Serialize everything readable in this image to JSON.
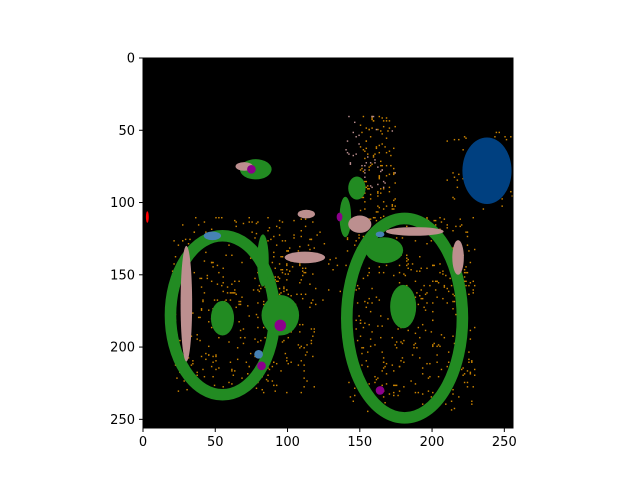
{
  "chart_data": {
    "type": "heatmap",
    "title": "",
    "xlabel": "",
    "ylabel": "",
    "image_size": [
      256,
      256
    ],
    "xlim": [
      0,
      256
    ],
    "ylim": [
      256,
      0
    ],
    "y_inverted": true,
    "grid": false,
    "legend": "none",
    "x_ticks": [
      {
        "value": 0,
        "label": "0"
      },
      {
        "value": 50,
        "label": "50"
      },
      {
        "value": 100,
        "label": "100"
      },
      {
        "value": 150,
        "label": "150"
      },
      {
        "value": 200,
        "label": "200"
      },
      {
        "value": 250,
        "label": "250"
      }
    ],
    "y_ticks": [
      {
        "value": 0,
        "label": "0"
      },
      {
        "value": 50,
        "label": "50"
      },
      {
        "value": 100,
        "label": "100"
      },
      {
        "value": 150,
        "label": "150"
      },
      {
        "value": 200,
        "label": "200"
      },
      {
        "value": 250,
        "label": "250"
      }
    ],
    "background_color": "#000000",
    "segments": [
      {
        "class": "rear-wheel",
        "color": "#228b22",
        "shape": "ring",
        "cx": 55,
        "cy": 178,
        "rx": 36,
        "ry": 55,
        "stroke": 8
      },
      {
        "class": "front-wheel",
        "color": "#228b22",
        "shape": "ring",
        "cx": 181,
        "cy": 180,
        "rx": 40,
        "ry": 69,
        "stroke": 8
      },
      {
        "class": "seat",
        "color": "#228b22",
        "shape": "ellipse",
        "cx": 78,
        "cy": 77,
        "rx": 11,
        "ry": 7
      },
      {
        "class": "handlebar-stem",
        "color": "#228b22",
        "shape": "ellipse",
        "cx": 148,
        "cy": 90,
        "rx": 6,
        "ry": 8
      },
      {
        "class": "crank",
        "color": "#228b22",
        "shape": "ellipse",
        "cx": 95,
        "cy": 178,
        "rx": 13,
        "ry": 14
      },
      {
        "class": "fork",
        "color": "#228b22",
        "shape": "ellipse",
        "cx": 180,
        "cy": 172,
        "rx": 9,
        "ry": 15
      },
      {
        "class": "fork-upper",
        "color": "#228b22",
        "shape": "ellipse",
        "cx": 167,
        "cy": 133,
        "rx": 13,
        "ry": 9
      },
      {
        "class": "rear-hub",
        "color": "#228b22",
        "shape": "ellipse",
        "cx": 55,
        "cy": 180,
        "rx": 8,
        "ry": 12
      },
      {
        "class": "head-tube",
        "color": "#228b22",
        "shape": "ellipse",
        "cx": 140,
        "cy": 110,
        "rx": 4,
        "ry": 14
      },
      {
        "class": "seat-tube",
        "color": "#228b22",
        "shape": "ellipse",
        "cx": 83,
        "cy": 140,
        "rx": 4,
        "ry": 18
      },
      {
        "class": "frame-outline",
        "color": "#bc8f8f",
        "shape": "ellipse",
        "cx": 30,
        "cy": 170,
        "rx": 4,
        "ry": 40
      },
      {
        "class": "frame-outline",
        "color": "#bc8f8f",
        "shape": "ellipse",
        "cx": 112,
        "cy": 138,
        "rx": 14,
        "ry": 4
      },
      {
        "class": "frame-outline",
        "color": "#bc8f8f",
        "shape": "ellipse",
        "cx": 188,
        "cy": 120,
        "rx": 20,
        "ry": 3
      },
      {
        "class": "frame-outline",
        "color": "#bc8f8f",
        "shape": "ellipse",
        "cx": 218,
        "cy": 138,
        "rx": 4,
        "ry": 12
      },
      {
        "class": "frame-outline",
        "color": "#bc8f8f",
        "shape": "ellipse",
        "cx": 113,
        "cy": 108,
        "rx": 6,
        "ry": 3
      },
      {
        "class": "frame-outline",
        "color": "#bc8f8f",
        "shape": "ellipse",
        "cx": 70,
        "cy": 75,
        "rx": 6,
        "ry": 3
      },
      {
        "class": "frame-outline",
        "color": "#bc8f8f",
        "shape": "ellipse",
        "cx": 150,
        "cy": 115,
        "rx": 8,
        "ry": 6
      },
      {
        "class": "background-object",
        "color": "#004080",
        "shape": "ellipse",
        "cx": 238,
        "cy": 78,
        "rx": 17,
        "ry": 23
      },
      {
        "class": "highlight",
        "color": "#8b008b",
        "shape": "ellipse",
        "cx": 75,
        "cy": 77,
        "rx": 3,
        "ry": 3
      },
      {
        "class": "highlight",
        "color": "#8b008b",
        "shape": "ellipse",
        "cx": 95,
        "cy": 185,
        "rx": 4,
        "ry": 4
      },
      {
        "class": "highlight",
        "color": "#8b008b",
        "shape": "ellipse",
        "cx": 136,
        "cy": 110,
        "rx": 2,
        "ry": 3
      },
      {
        "class": "highlight",
        "color": "#8b008b",
        "shape": "ellipse",
        "cx": 82,
        "cy": 213,
        "rx": 3,
        "ry": 3
      },
      {
        "class": "highlight",
        "color": "#8b008b",
        "shape": "ellipse",
        "cx": 164,
        "cy": 230,
        "rx": 3,
        "ry": 3
      },
      {
        "class": "highlight",
        "color": "#4682b4",
        "shape": "ellipse",
        "cx": 48,
        "cy": 123,
        "rx": 6,
        "ry": 3
      },
      {
        "class": "highlight",
        "color": "#4682b4",
        "shape": "ellipse",
        "cx": 80,
        "cy": 205,
        "rx": 3,
        "ry": 3
      },
      {
        "class": "highlight",
        "color": "#4682b4",
        "shape": "ellipse",
        "cx": 164,
        "cy": 122,
        "rx": 3,
        "ry": 2
      },
      {
        "class": "highlight",
        "color": "#ff0000",
        "shape": "ellipse",
        "cx": 3,
        "cy": 110,
        "rx": 1,
        "ry": 4
      }
    ],
    "noise_regions": [
      {
        "color": "#cd8500",
        "x0": 20,
        "y0": 110,
        "x1": 120,
        "y1": 232,
        "count": 380
      },
      {
        "color": "#cd8500",
        "x0": 140,
        "y0": 110,
        "x1": 230,
        "y1": 245,
        "count": 420
      },
      {
        "color": "#cd8500",
        "x0": 150,
        "y0": 40,
        "x1": 175,
        "y1": 115,
        "count": 120
      },
      {
        "color": "#cd8500",
        "x0": 90,
        "y0": 120,
        "x1": 150,
        "y1": 170,
        "count": 60
      },
      {
        "color": "#cd8500",
        "x0": 210,
        "y0": 50,
        "x1": 256,
        "y1": 105,
        "count": 50
      },
      {
        "color": "#bc8f8f",
        "x0": 140,
        "y0": 40,
        "x1": 175,
        "y1": 90,
        "count": 40
      }
    ]
  }
}
